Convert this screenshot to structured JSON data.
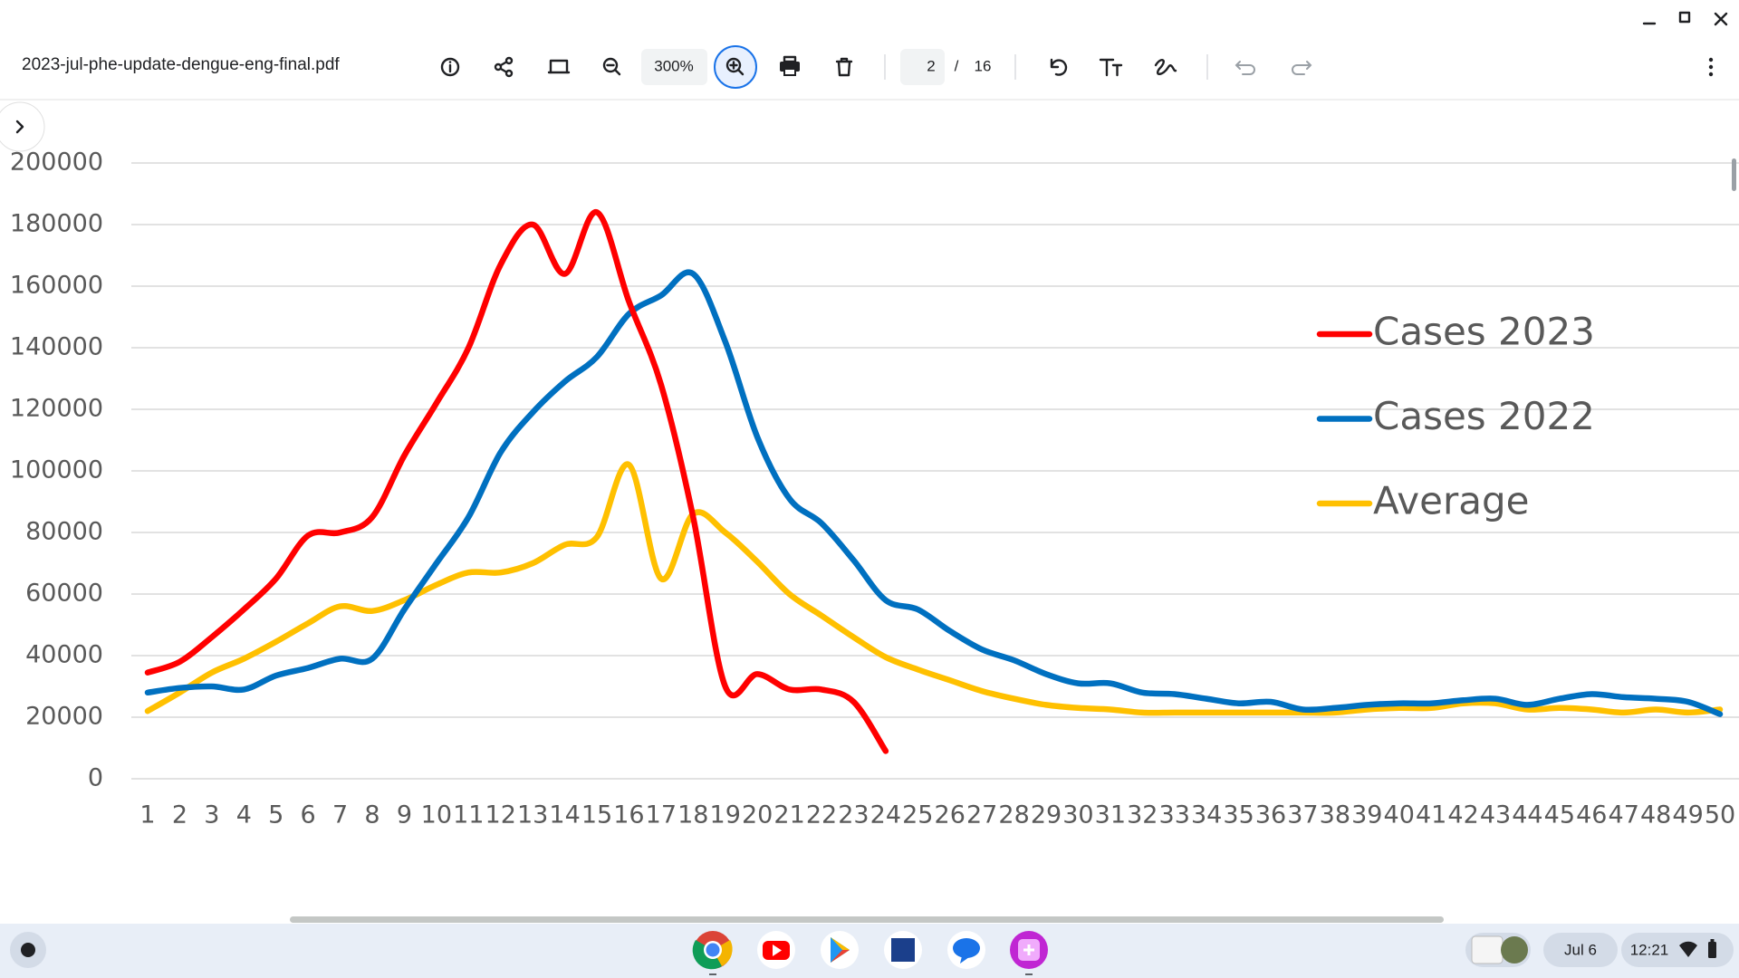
{
  "viewer": {
    "file_name": "2023-jul-phe-update-dengue-eng-final.pdf",
    "zoom": "300%",
    "page": "2",
    "page_separator": "/",
    "page_total": "16"
  },
  "taskbar": {
    "date": "Jul 6",
    "time": "12:21"
  },
  "chart_data": {
    "type": "line",
    "categories": [
      1,
      2,
      3,
      4,
      5,
      6,
      7,
      8,
      9,
      10,
      11,
      12,
      13,
      14,
      15,
      16,
      17,
      18,
      19,
      20,
      21,
      22,
      23,
      24,
      25,
      26,
      27,
      28,
      29,
      30,
      31,
      32,
      33,
      34,
      35,
      36,
      37,
      38,
      39,
      40,
      41,
      42,
      43,
      44,
      45,
      46,
      47,
      48,
      49,
      50
    ],
    "series": [
      {
        "name": "Cases 2023",
        "color": "#ff0000",
        "values": [
          34500,
          38000,
          46000,
          55000,
          65000,
          79000,
          80000,
          85000,
          105000,
          122000,
          140000,
          167000,
          180000,
          164000,
          184000,
          155000,
          128000,
          85000,
          30000,
          34000,
          29000,
          29000,
          25000,
          9000,
          null,
          null,
          null,
          null,
          null,
          null,
          null,
          null,
          null,
          null,
          null,
          null,
          null,
          null,
          null,
          null,
          null,
          null,
          null,
          null,
          null,
          null,
          null,
          null,
          null,
          null
        ]
      },
      {
        "name": "Cases 2022",
        "color": "#0070c0",
        "values": [
          28000,
          29500,
          30000,
          29000,
          33500,
          36000,
          39000,
          39000,
          55000,
          70000,
          85000,
          106000,
          119000,
          129000,
          137000,
          151000,
          157000,
          164000,
          142000,
          111000,
          91000,
          83000,
          71000,
          58000,
          55000,
          48000,
          42000,
          38500,
          34000,
          31000,
          31000,
          28000,
          27500,
          26000,
          24500,
          25000,
          22500,
          23000,
          24000,
          24500,
          24500,
          25500,
          26000,
          24000,
          26000,
          27500,
          26500,
          26000,
          25000,
          21000
        ]
      },
      {
        "name": "Average",
        "color": "#ffc000",
        "values": [
          22000,
          28000,
          34500,
          39000,
          44500,
          50500,
          56000,
          54500,
          58000,
          63000,
          67000,
          67000,
          70000,
          76000,
          78500,
          102000,
          65000,
          86000,
          80000,
          70500,
          60000,
          53000,
          46000,
          39500,
          35500,
          32000,
          28500,
          26000,
          24000,
          23000,
          22500,
          21500,
          21500,
          21500,
          21500,
          21500,
          21500,
          21500,
          22500,
          23000,
          23000,
          24500,
          24500,
          22500,
          23000,
          22500,
          21500,
          22500,
          21500,
          22500
        ]
      }
    ],
    "ylim": [
      0,
      200000
    ],
    "yticks": [
      0,
      20000,
      40000,
      60000,
      80000,
      100000,
      120000,
      140000,
      160000,
      180000,
      200000
    ],
    "grid": true,
    "legend": "right"
  }
}
